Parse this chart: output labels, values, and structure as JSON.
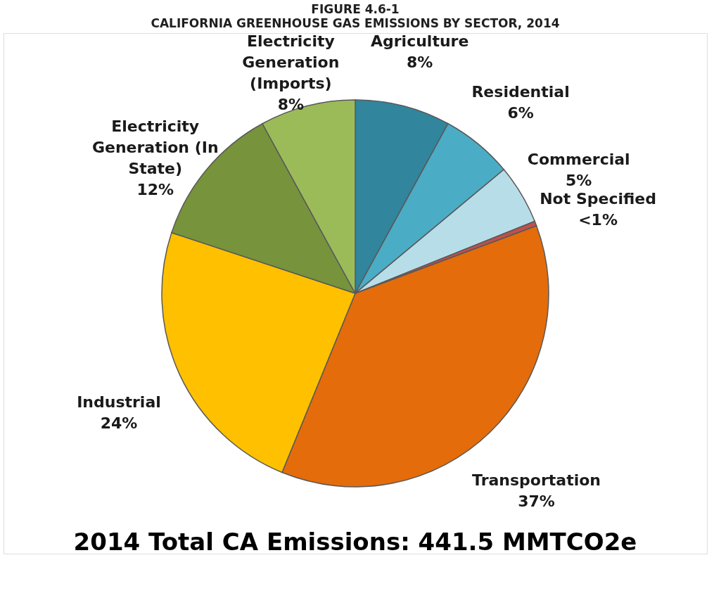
{
  "chart_data": {
    "type": "pie",
    "title": "FIGURE 4.6-1",
    "subtitle": "CALIFORNIA GREENHOUSE GAS EMISSIONS BY SECTOR, 2014",
    "categories": [
      "Agriculture",
      "Residential",
      "Commercial",
      "Not Specified",
      "Transportation",
      "Industrial",
      "Electricity Generation (In State)",
      "Electricity Generation (Imports)"
    ],
    "values": [
      8,
      6,
      5,
      0.4,
      37,
      24,
      12,
      8
    ],
    "value_labels": [
      "8%",
      "6%",
      "5%",
      "<1%",
      "37%",
      "24%",
      "12%",
      "8%"
    ],
    "colors": [
      "#31859c",
      "#4bacc6",
      "#b7dee8",
      "#c0504d",
      "#e46c0a",
      "#ffc000",
      "#77933c",
      "#9bbb59"
    ],
    "annotations": [
      "2014 Total CA Emissions: 441.5 MMTCO2e"
    ],
    "legend": false
  }
}
